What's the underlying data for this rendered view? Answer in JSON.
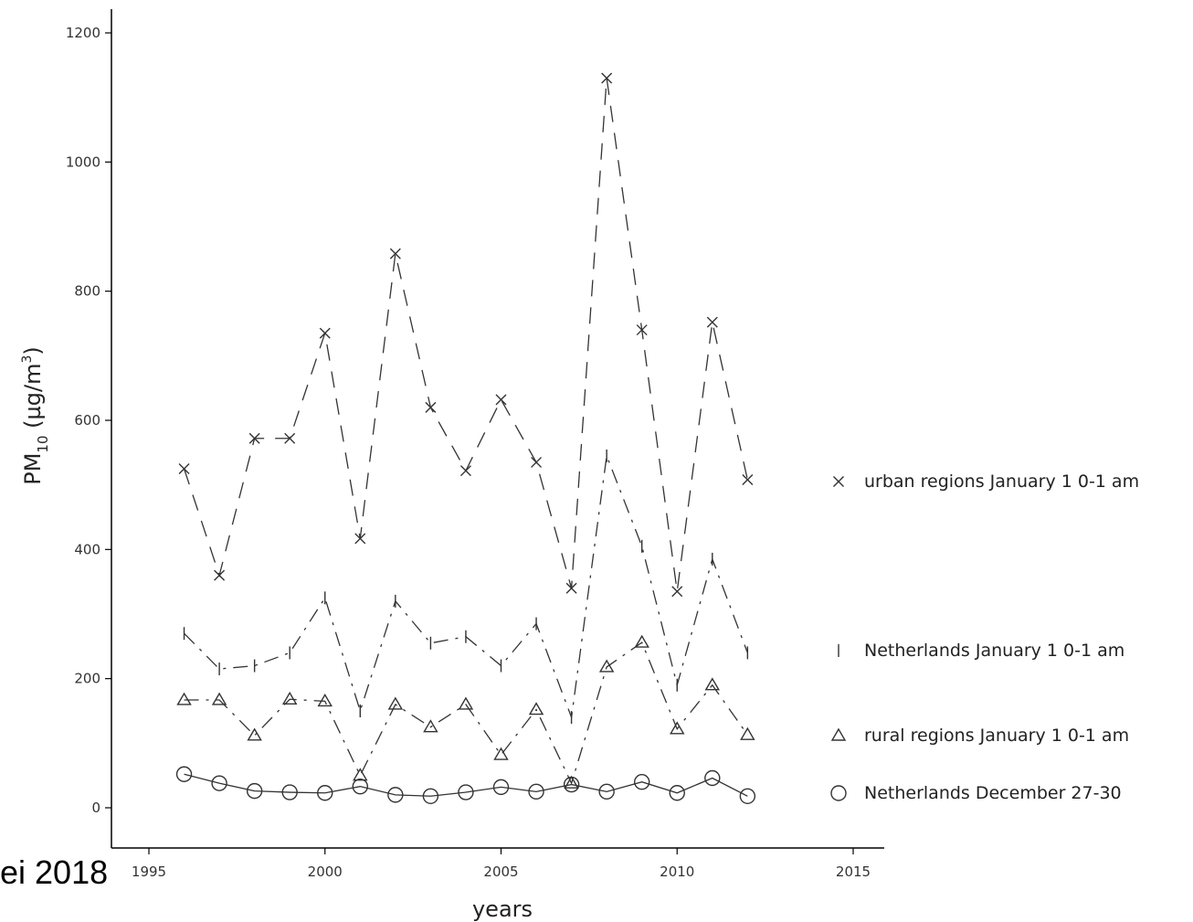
{
  "overlay_text": "ei 2018",
  "chart_data": {
    "type": "line",
    "title": "",
    "xlabel": "years",
    "ylabel_main": "PM",
    "ylabel_sub": "10",
    "ylabel_unit_open": " (µg/m",
    "ylabel_sup": "3",
    "ylabel_unit_close": ")",
    "xlim": [
      1995,
      2016
    ],
    "ylim": [
      -60,
      1240
    ],
    "xticks": [
      1995,
      2000,
      2005,
      2010,
      2015
    ],
    "yticks": [
      0,
      200,
      400,
      600,
      800,
      1000,
      1200
    ],
    "grid": false,
    "legend_position": "right",
    "x": [
      1996,
      1997,
      1998,
      1999,
      2000,
      2001,
      2002,
      2003,
      2004,
      2005,
      2006,
      2007,
      2008,
      2009,
      2010,
      2011,
      2012
    ],
    "series": [
      {
        "name": "urban regions January 1 0-1 am",
        "marker": "x",
        "line": "dashed",
        "values": [
          525,
          360,
          572,
          572,
          735,
          417,
          858,
          620,
          522,
          632,
          535,
          340,
          1130,
          740,
          335,
          752,
          508
        ]
      },
      {
        "name": "Netherlands January 1 0-1 am",
        "marker": "vbar",
        "line": "dashdot",
        "values": [
          270,
          215,
          220,
          240,
          325,
          150,
          320,
          255,
          265,
          220,
          285,
          140,
          545,
          405,
          190,
          385,
          240
        ]
      },
      {
        "name": "rural regions January 1 0-1 am",
        "marker": "triangle",
        "line": "dashdot",
        "values": [
          167,
          167,
          112,
          168,
          165,
          50,
          160,
          125,
          160,
          82,
          152,
          38,
          218,
          256,
          122,
          190,
          113
        ]
      },
      {
        "name": "Netherlands December 27-30",
        "marker": "circle",
        "line": "solid",
        "values": [
          52,
          38,
          26,
          24,
          23,
          33,
          20,
          18,
          24,
          32,
          25,
          36,
          25,
          40,
          23,
          46,
          18
        ]
      }
    ]
  }
}
